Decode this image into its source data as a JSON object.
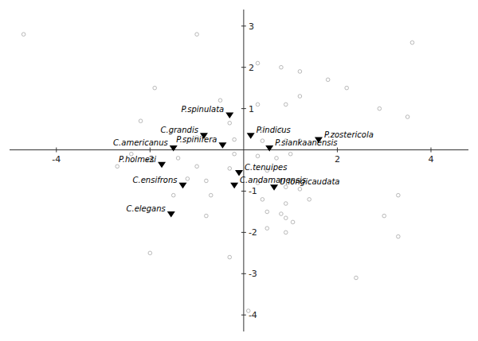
{
  "chart_data": {
    "type": "scatter",
    "xlim": [
      -5.0,
      4.8
    ],
    "ylim": [
      -4.4,
      3.4
    ],
    "xticks": [
      -4,
      -2,
      2,
      4
    ],
    "yticks": [
      -4,
      -3,
      -2,
      -1,
      1,
      2,
      3
    ],
    "series": [
      {
        "marker": "circle",
        "color": "#b0b0b0",
        "x": [
          -4.7,
          -1.0,
          3.6,
          -1.9,
          0.3,
          0.8,
          1.2,
          1.8,
          2.2,
          -0.5,
          0.3,
          0.9,
          1.2,
          2.9,
          3.5,
          -2.2,
          -0.3,
          0.4,
          0.8,
          -1.0,
          -0.2,
          0.4,
          0.9,
          1.2,
          -2.4,
          -1.4,
          -0.2,
          0.3,
          0.7,
          1.0,
          -2.7,
          -1.0,
          -0.3,
          0.5,
          -1.2,
          -0.8,
          0.3,
          0.9,
          1.2,
          -1.5,
          -0.7,
          0.4,
          0.9,
          1.4,
          3.3,
          -0.8,
          0.5,
          0.8,
          0.9,
          1.05,
          3.0,
          0.5,
          0.9,
          3.3,
          -2.0,
          -0.3,
          2.4,
          0.1
        ],
        "values": [
          2.8,
          2.8,
          2.6,
          1.5,
          2.1,
          2.0,
          1.9,
          1.7,
          1.5,
          1.2,
          1.1,
          1.1,
          1.3,
          1.0,
          0.8,
          0.7,
          0.65,
          0.5,
          0.5,
          0.3,
          0.25,
          0.22,
          0.22,
          0.22,
          -0.1,
          -0.2,
          -0.1,
          -0.15,
          -0.2,
          -0.1,
          -0.4,
          -0.4,
          -0.45,
          -0.5,
          -0.7,
          -0.75,
          -0.8,
          -0.9,
          -0.95,
          -1.1,
          -1.1,
          -1.2,
          -1.3,
          -1.2,
          -1.1,
          -1.6,
          -1.5,
          -1.55,
          -1.65,
          -1.75,
          -1.6,
          -1.9,
          -2.0,
          -2.1,
          -2.5,
          -2.6,
          -3.1,
          -3.9
        ]
      },
      {
        "marker": "triangle-down",
        "color": "#000000",
        "x": [
          -0.3,
          -0.85,
          -0.45,
          -1.5,
          0.15,
          0.55,
          1.6,
          -1.75,
          -0.1,
          -0.2,
          -1.3,
          0.65,
          -1.55
        ],
        "values": [
          0.85,
          0.35,
          0.12,
          0.05,
          0.35,
          0.05,
          0.25,
          -0.35,
          -0.55,
          -0.85,
          -0.85,
          -0.9,
          -1.55
        ],
        "labels": [
          "P.spinulata",
          "C.grandis",
          "P.spinifera",
          "C.americanus",
          "P.indicus",
          "P.siankaanensis",
          "P.zostericola",
          "P.holmesi",
          "C.tenuipes",
          "C.andamanensis",
          "C.ensifrons",
          "U.longicaudata",
          "C.elegans"
        ]
      }
    ]
  }
}
